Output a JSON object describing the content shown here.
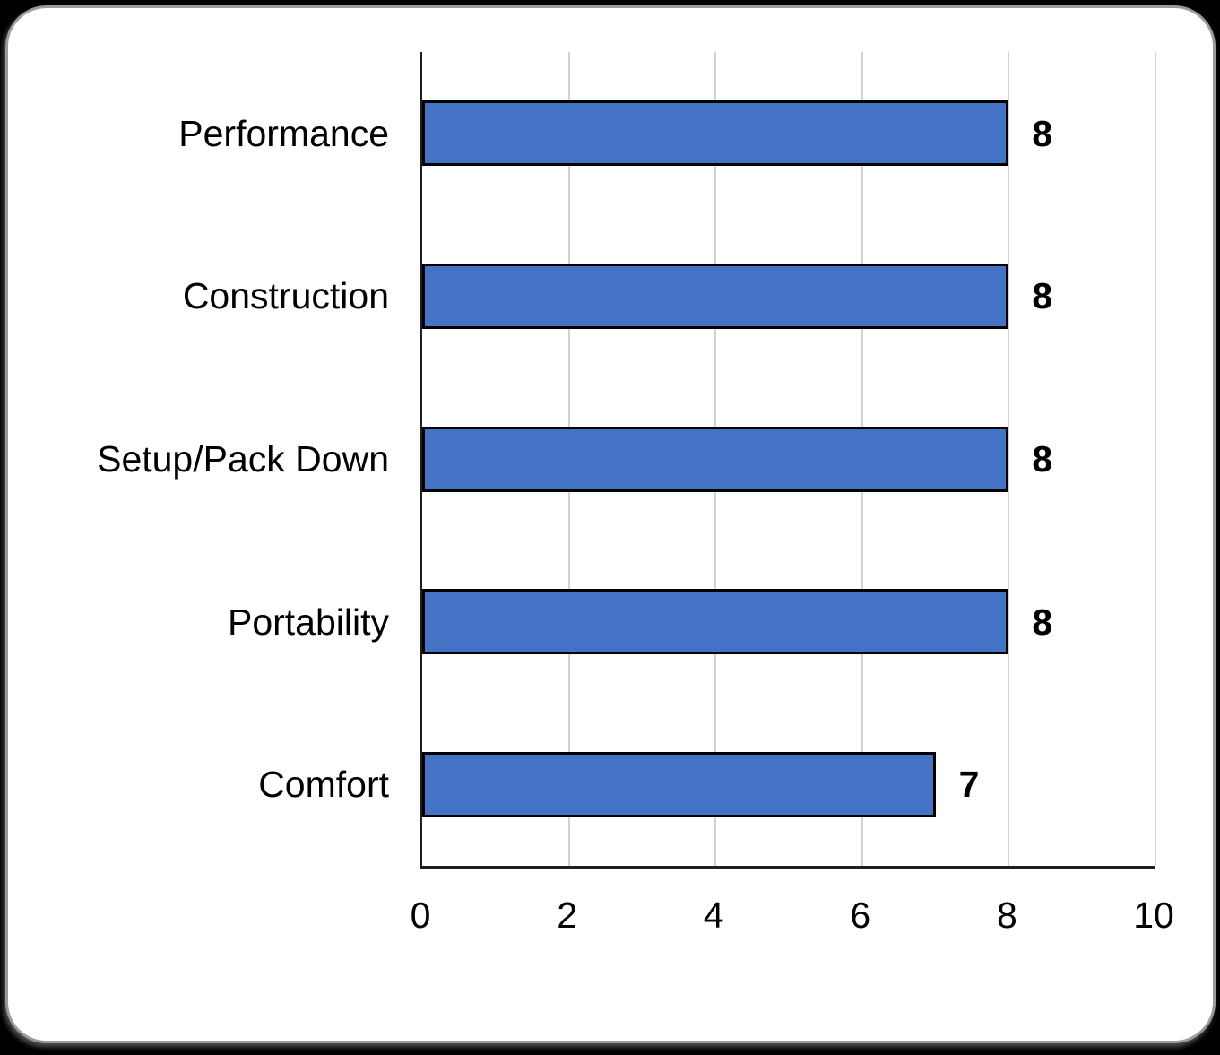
{
  "page": {
    "background_color": "#000000",
    "card_background_color": "#ffffff",
    "card_border_color": "#9b9b9b"
  },
  "chart_data": {
    "type": "bar",
    "orientation": "horizontal",
    "title": "",
    "xlabel": "",
    "ylabel": "",
    "categories": [
      "Performance",
      "Construction",
      "Setup/Pack Down",
      "Portability",
      "Comfort"
    ],
    "series": [
      {
        "name": "Rating",
        "values": [
          8,
          8,
          8,
          8,
          7
        ]
      }
    ],
    "value_labels": [
      "8",
      "8",
      "8",
      "8",
      "7"
    ],
    "xlim": [
      0,
      10
    ],
    "xticks": [
      0,
      2,
      4,
      6,
      8,
      10
    ],
    "xtick_labels": [
      "0",
      "2",
      "4",
      "6",
      "8",
      "10"
    ],
    "grid": "vertical",
    "legend_position": "none",
    "colors": {
      "bar_fill": "#4472C4",
      "bar_border": "#000000",
      "gridline": "#d2d2d2",
      "axis_line": "#1f1f1f",
      "text": "#000000"
    }
  }
}
